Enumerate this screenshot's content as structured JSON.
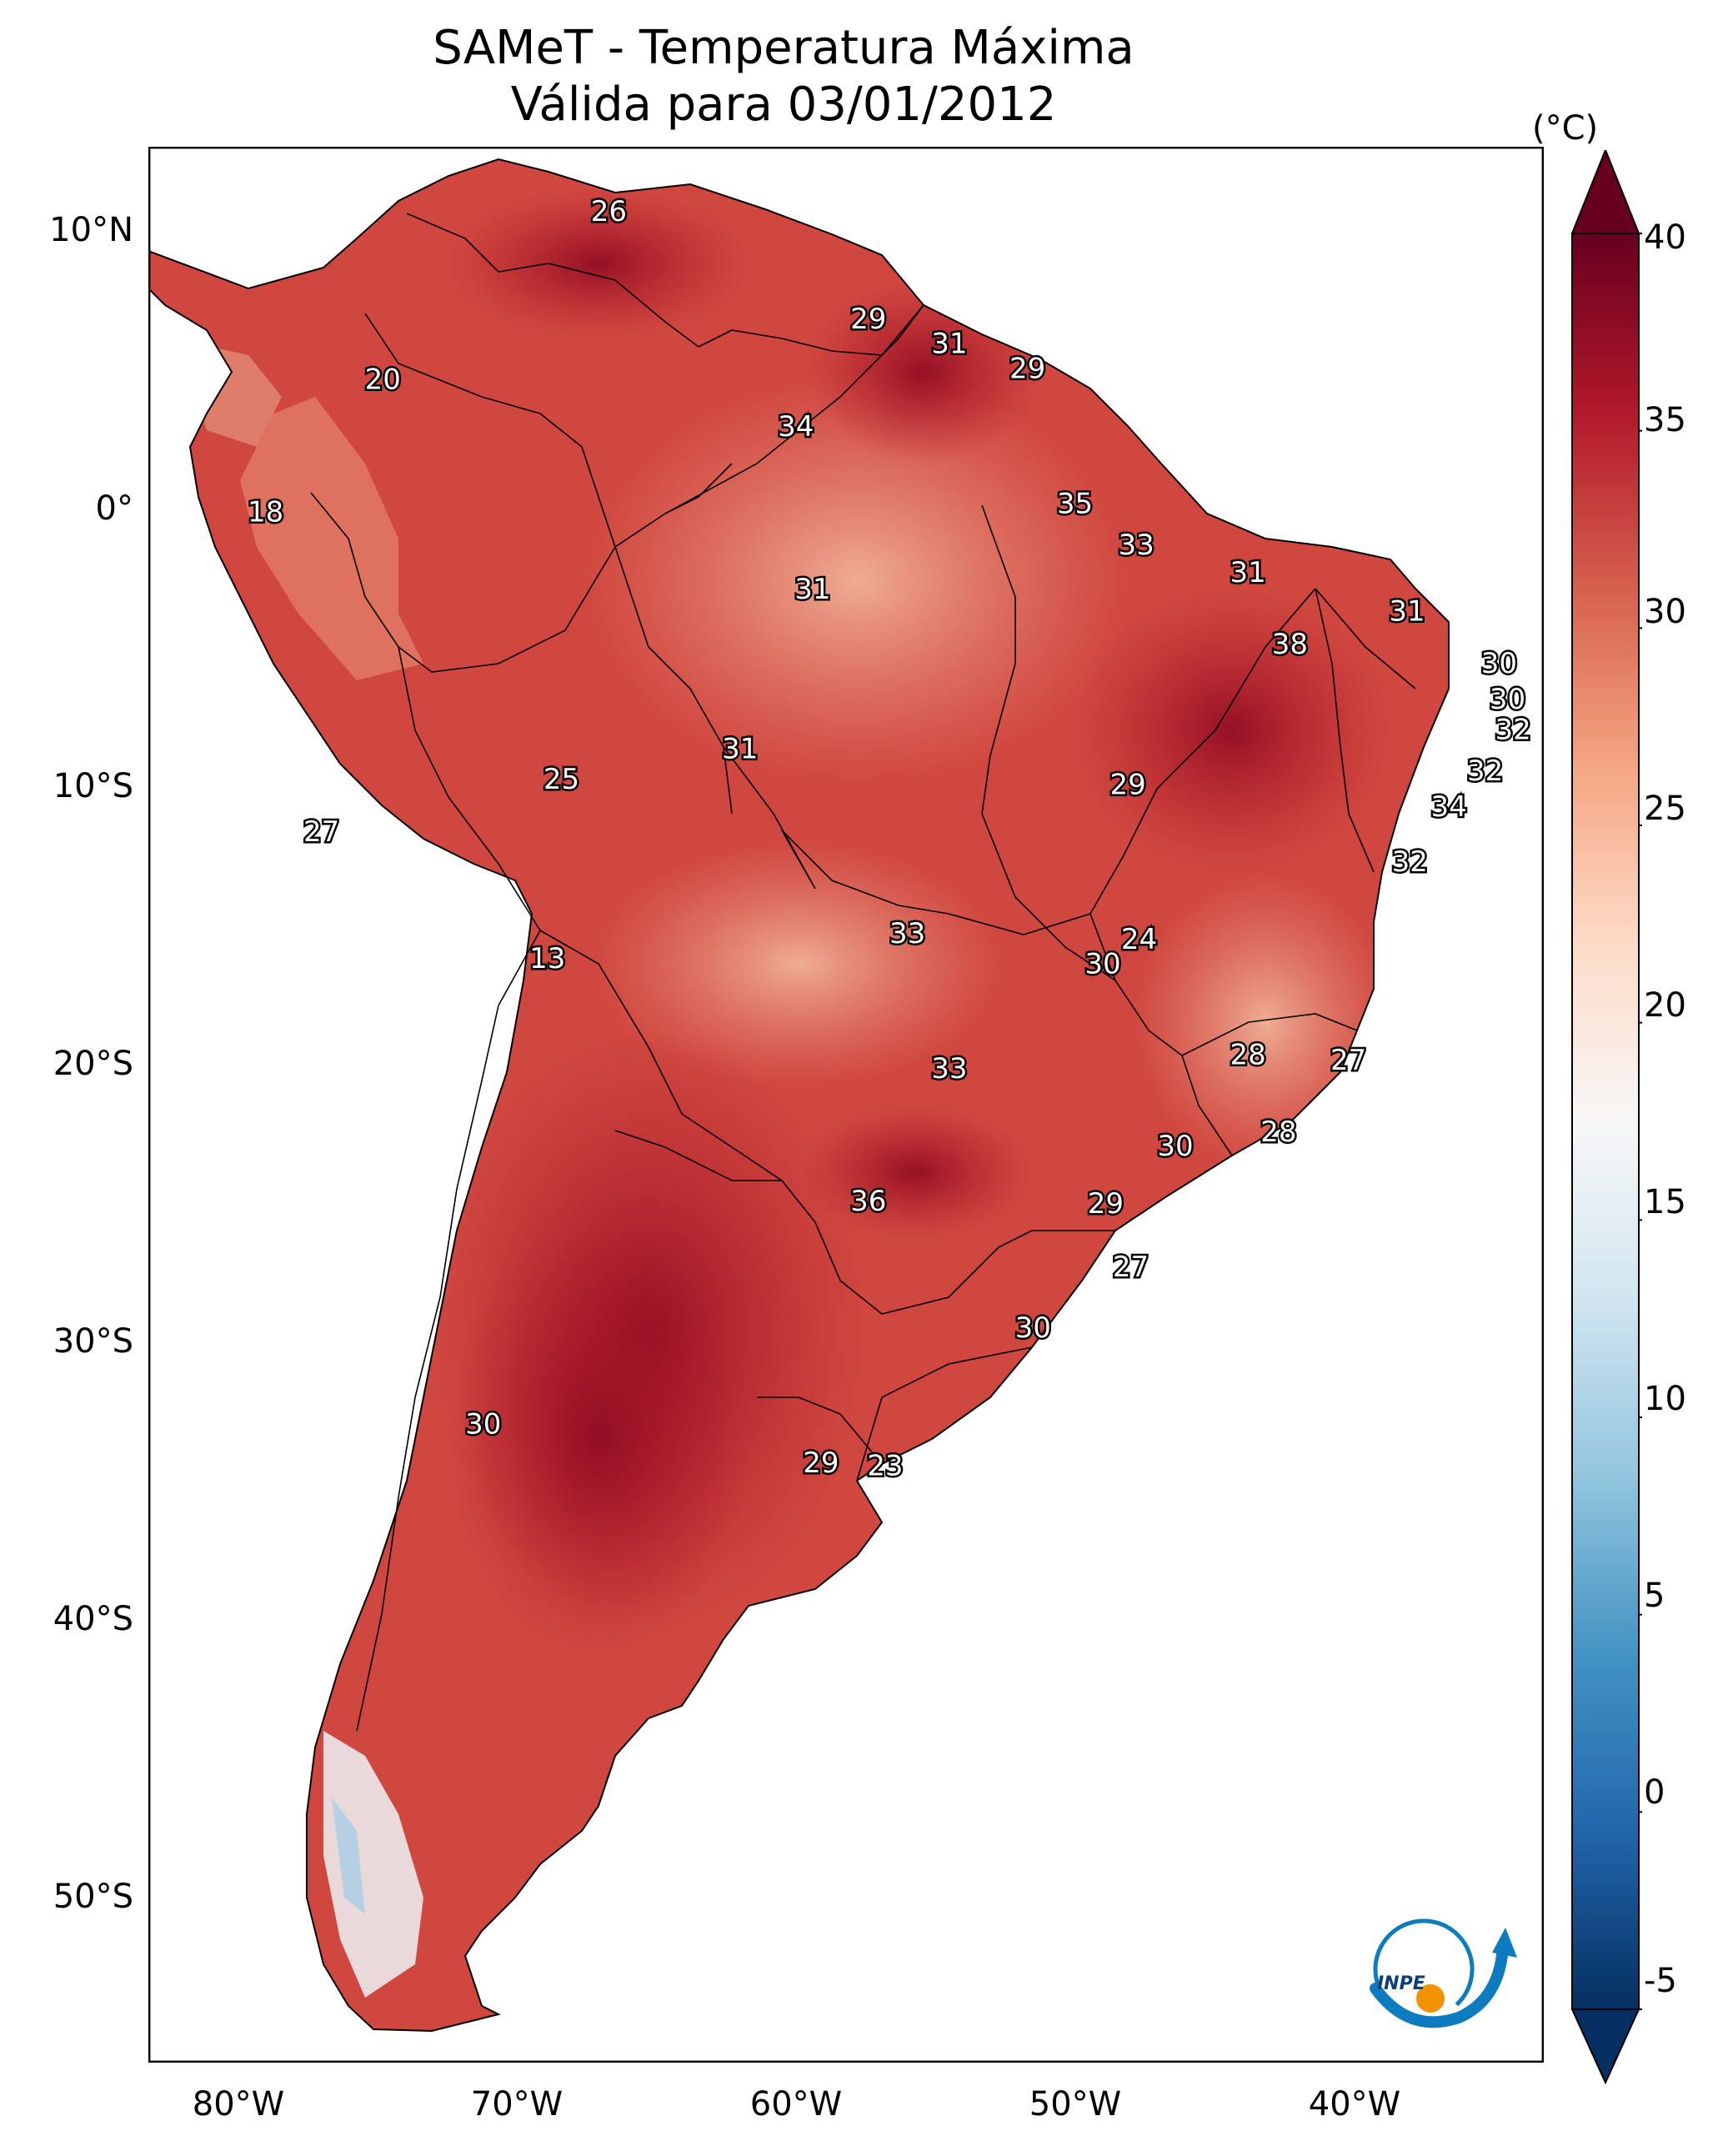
{
  "title": {
    "line1": "SAMeT - Temperatura Máxima",
    "line2": "Válida para 03/01/2012"
  },
  "map": {
    "lon_range": [
      -83,
      -33
    ],
    "lat_range": [
      -56.5,
      13
    ],
    "lat_ticks": [
      "10°N",
      "0°",
      "10°S",
      "20°S",
      "30°S",
      "40°S",
      "50°S"
    ],
    "lat_tick_values": [
      10,
      0,
      -10,
      -20,
      -30,
      -40,
      -50
    ],
    "lon_ticks": [
      "80°W",
      "70°W",
      "60°W",
      "50°W",
      "40°W"
    ],
    "lon_tick_values": [
      -80,
      -70,
      -60,
      -50,
      -40
    ],
    "labels": [
      {
        "text": "26",
        "lon": -66.5,
        "lat": 10.6
      },
      {
        "text": "29",
        "lon": -57.2,
        "lat": 6.7
      },
      {
        "text": "31",
        "lon": -54.3,
        "lat": 5.8
      },
      {
        "text": "29",
        "lon": -51.5,
        "lat": 4.9
      },
      {
        "text": "20",
        "lon": -74.6,
        "lat": 4.5
      },
      {
        "text": "34",
        "lon": -59.8,
        "lat": 2.8
      },
      {
        "text": "35",
        "lon": -49.8,
        "lat": 0.0
      },
      {
        "text": "18",
        "lon": -78.8,
        "lat": -0.3
      },
      {
        "text": "33",
        "lon": -47.6,
        "lat": -1.5
      },
      {
        "text": "31",
        "lon": -43.6,
        "lat": -2.5
      },
      {
        "text": "31",
        "lon": -59.2,
        "lat": -3.1
      },
      {
        "text": "31",
        "lon": -37.9,
        "lat": -3.9
      },
      {
        "text": "38",
        "lon": -42.1,
        "lat": -5.1
      },
      {
        "text": "30",
        "lon": -34.6,
        "lat": -5.8
      },
      {
        "text": "30",
        "lon": -34.3,
        "lat": -7.1
      },
      {
        "text": "32",
        "lon": -34.1,
        "lat": -8.2
      },
      {
        "text": "31",
        "lon": -61.8,
        "lat": -8.9
      },
      {
        "text": "32",
        "lon": -35.1,
        "lat": -9.7
      },
      {
        "text": "25",
        "lon": -68.2,
        "lat": -10.0
      },
      {
        "text": "29",
        "lon": -47.9,
        "lat": -10.2
      },
      {
        "text": "34",
        "lon": -36.4,
        "lat": -11.0
      },
      {
        "text": "27",
        "lon": -76.8,
        "lat": -11.9
      },
      {
        "text": "32",
        "lon": -37.8,
        "lat": -13.0
      },
      {
        "text": "24",
        "lon": -47.5,
        "lat": -15.8
      },
      {
        "text": "33",
        "lon": -55.8,
        "lat": -15.6
      },
      {
        "text": "30",
        "lon": -48.8,
        "lat": -16.7
      },
      {
        "text": "13",
        "lon": -68.7,
        "lat": -16.5
      },
      {
        "text": "28",
        "lon": -43.6,
        "lat": -20.0
      },
      {
        "text": "27",
        "lon": -40.0,
        "lat": -20.2
      },
      {
        "text": "33",
        "lon": -54.3,
        "lat": -20.5
      },
      {
        "text": "28",
        "lon": -42.5,
        "lat": -22.8
      },
      {
        "text": "30",
        "lon": -46.2,
        "lat": -23.3
      },
      {
        "text": "36",
        "lon": -57.2,
        "lat": -25.3
      },
      {
        "text": "29",
        "lon": -48.7,
        "lat": -25.4
      },
      {
        "text": "27",
        "lon": -47.8,
        "lat": -27.7
      },
      {
        "text": "30",
        "lon": -51.3,
        "lat": -29.9
      },
      {
        "text": "30",
        "lon": -71.0,
        "lat": -33.4
      },
      {
        "text": "29",
        "lon": -58.9,
        "lat": -34.8
      },
      {
        "text": "23",
        "lon": -56.6,
        "lat": -34.9
      }
    ]
  },
  "colorbar": {
    "unit": "(°C)",
    "min": -5,
    "max": 40,
    "ticks": [
      "40",
      "35",
      "30",
      "25",
      "20",
      "15",
      "10",
      "5",
      "0",
      "-5"
    ],
    "tick_values": [
      40,
      35,
      30,
      25,
      20,
      15,
      10,
      5,
      0,
      -5
    ],
    "colors": [
      "#053061",
      "#2166ac",
      "#4393c3",
      "#92c5de",
      "#d1e5f0",
      "#f7f7f7",
      "#fddbc7",
      "#f4a582",
      "#d6604d",
      "#b2182b",
      "#67001f"
    ]
  },
  "logo": {
    "text": "INPE",
    "colors": [
      "#0c7bbf",
      "#f39200"
    ]
  }
}
